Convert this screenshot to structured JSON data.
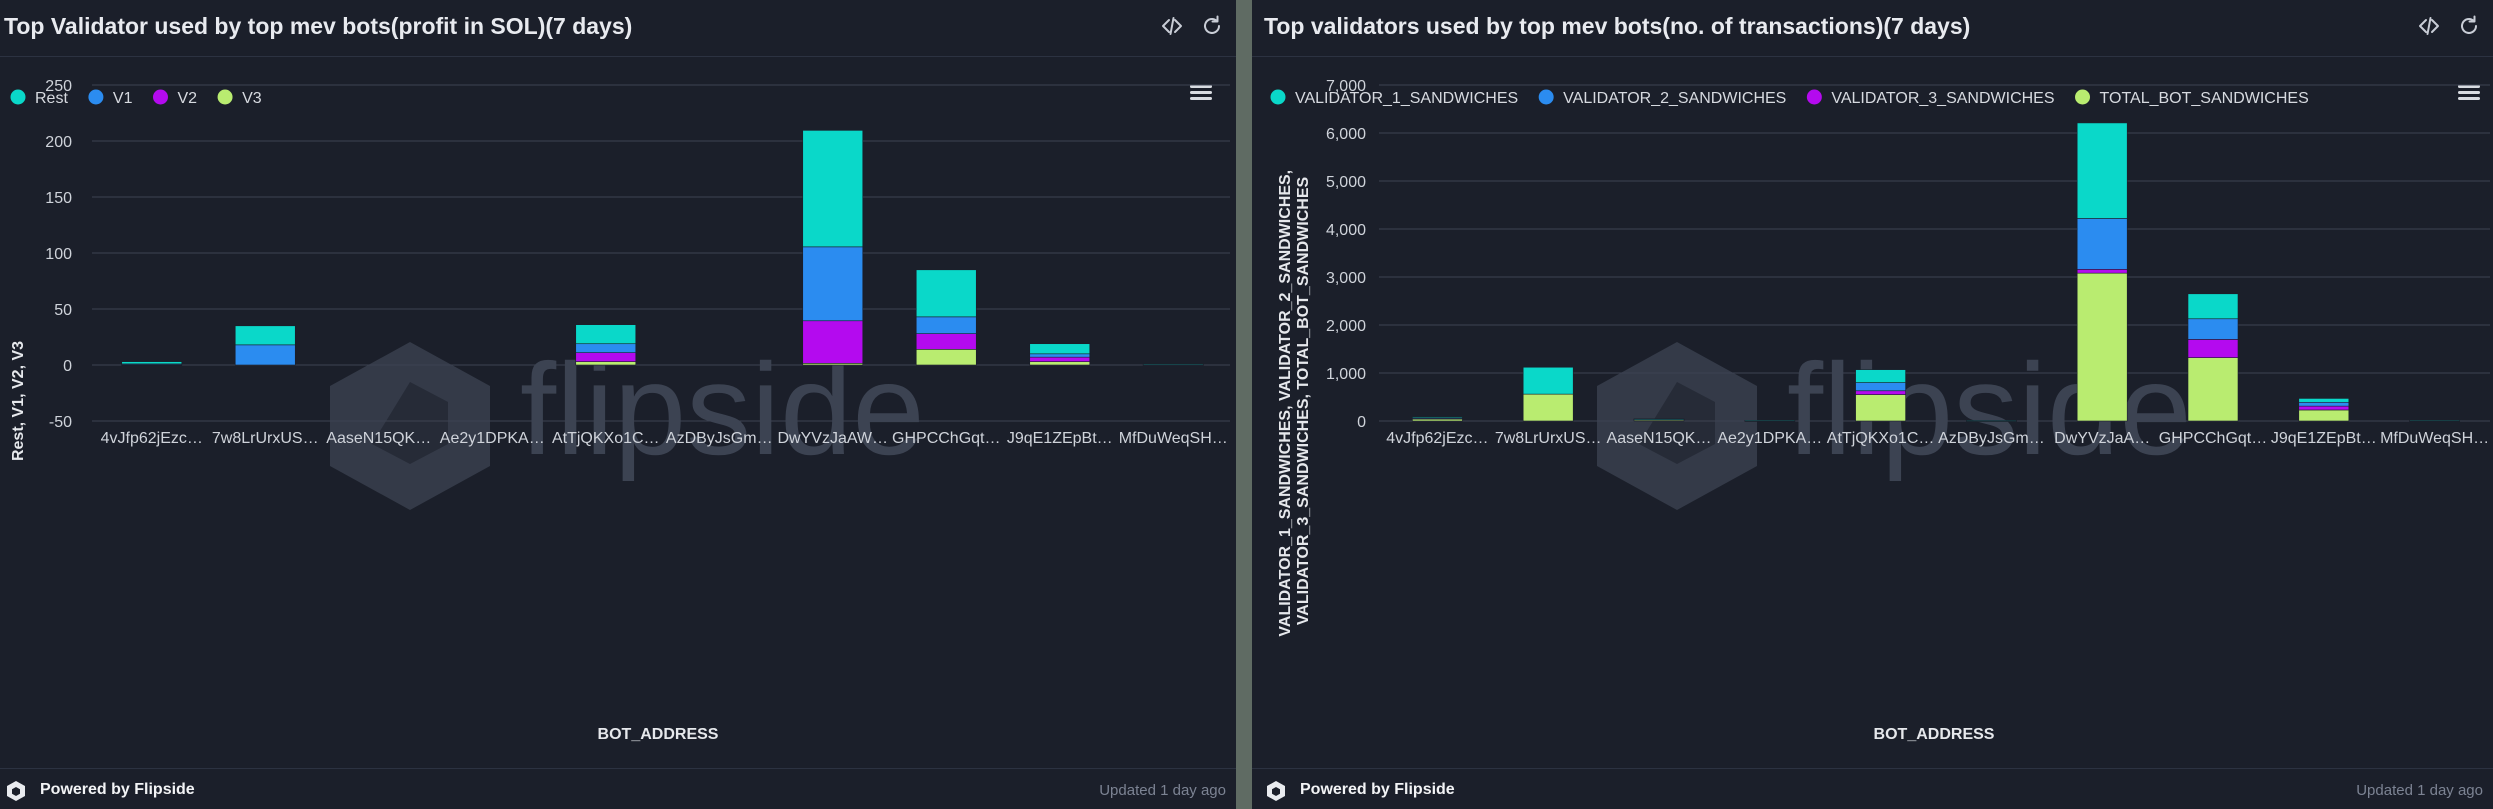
{
  "footer": {
    "powered_by": "Powered by Flipside",
    "updated": "Updated 1 day ago"
  },
  "watermark": {
    "text": "flipside"
  },
  "colors": {
    "page_background": "#5f6b63",
    "panel_background": "#1b1f2a",
    "gridline": "#3d4352",
    "series": [
      "#0ad8c9",
      "#2b8cf0",
      "#b40aef",
      "#b9ec70"
    ]
  },
  "icons": [
    "code-icon",
    "refresh-icon",
    "menu-icon",
    "flipside-logo-icon"
  ],
  "charts": [
    {
      "title": "Top Validator used by top mev bots(profit in SOL)(7 days)",
      "chart_data": {
        "type": "bar",
        "stacked": true,
        "categories": [
          "4vJfp62jEzc…",
          "7w8LrUrxUS…",
          "AaseN15QK…",
          "Ae2y1DPKA…",
          "AtTjQKXo1C…",
          "AzDByJsGm…",
          "DwYVzJaAW…",
          "GHPCChGqt…",
          "J9qE1ZEpBt…",
          "MfDuWeqSH…"
        ],
        "series": [
          {
            "name": "V3",
            "color": "#b9ec70",
            "values": [
              0.3,
              0,
              0,
              0,
              3,
              0,
              1.5,
              14,
              3,
              0.2
            ]
          },
          {
            "name": "V2",
            "color": "#b40aef",
            "values": [
              0.2,
              0,
              0,
              0,
              8,
              0,
              38,
              14,
              4,
              0.1
            ]
          },
          {
            "name": "V1",
            "color": "#2b8cf0",
            "values": [
              0.5,
              18,
              0,
              0,
              8,
              0,
              66,
              15,
              3,
              0.1
            ]
          },
          {
            "name": "Rest",
            "color": "#0ad8c9",
            "values": [
              2,
              17,
              0,
              0,
              17,
              0,
              104,
              42,
              9,
              0.5
            ]
          }
        ],
        "legend": [
          "Rest",
          "V1",
          "V2",
          "V3"
        ],
        "legend_position": "top-left",
        "xlabel": "BOT_ADDRESS",
        "ylabel": "Rest, V1, V2, V3",
        "ylim": [
          -50,
          250
        ],
        "yticks": [
          "250",
          "200",
          "150",
          "100",
          "50",
          "0",
          "-50"
        ],
        "ytick_values": [
          250,
          200,
          150,
          100,
          50,
          0,
          -50
        ],
        "grid": true
      }
    },
    {
      "title": "Top validators used by top mev bots(no. of transactions)(7 days)",
      "chart_data": {
        "type": "bar",
        "stacked": true,
        "categories": [
          "4vJfp62jEzc…",
          "7w8LrUrxUS…",
          "AaseN15QK…",
          "Ae2y1DPKA…",
          "AtTjQKXo1C…",
          "AzDByJsGm…",
          "DwYVzJaA…",
          "GHPCChGqt…",
          "J9qE1ZEpBt…",
          "MfDuWeqSH…"
        ],
        "series": [
          {
            "name": "TOTAL_BOT_SANDWICHES",
            "color": "#b9ec70",
            "values": [
              50,
              560,
              35,
              8,
              550,
              6,
              3080,
              1320,
              230,
              8
            ]
          },
          {
            "name": "VALIDATOR_3_SANDWICHES",
            "color": "#b40aef",
            "values": [
              5,
              0,
              2,
              0,
              80,
              0,
              80,
              380,
              80,
              0
            ]
          },
          {
            "name": "VALIDATOR_2_SANDWICHES",
            "color": "#2b8cf0",
            "values": [
              10,
              0,
              3,
              0,
              170,
              0,
              1060,
              430,
              80,
              0
            ]
          },
          {
            "name": "VALIDATOR_1_SANDWICHES",
            "color": "#0ad8c9",
            "values": [
              20,
              560,
              5,
              2,
              270,
              3,
              1990,
              520,
              80,
              2
            ]
          }
        ],
        "legend": [
          "VALIDATOR_1_SANDWICHES",
          "VALIDATOR_2_SANDWICHES",
          "VALIDATOR_3_SANDWICHES",
          "TOTAL_BOT_SANDWICHES"
        ],
        "legend_position": "top-left",
        "xlabel": "BOT_ADDRESS",
        "ylabel": "VALIDATOR_1_SANDWICHES, VALIDATOR_2_SANDWICHES, VALIDATOR_3_SANDWICHES, TOTAL_BOT_SANDWICHES",
        "ylabel_lines": [
          "VALIDATOR_1_SANDWICHES, VALIDATOR_2_SANDWICHES,",
          "VALIDATOR_3_SANDWICHES, TOTAL_BOT_SANDWICHES"
        ],
        "ylim": [
          0,
          7000
        ],
        "yticks": [
          "7,000",
          "6,000",
          "5,000",
          "4,000",
          "3,000",
          "2,000",
          "1,000",
          "0"
        ],
        "ytick_values": [
          7000,
          6000,
          5000,
          4000,
          3000,
          2000,
          1000,
          0
        ],
        "grid": true
      }
    }
  ]
}
